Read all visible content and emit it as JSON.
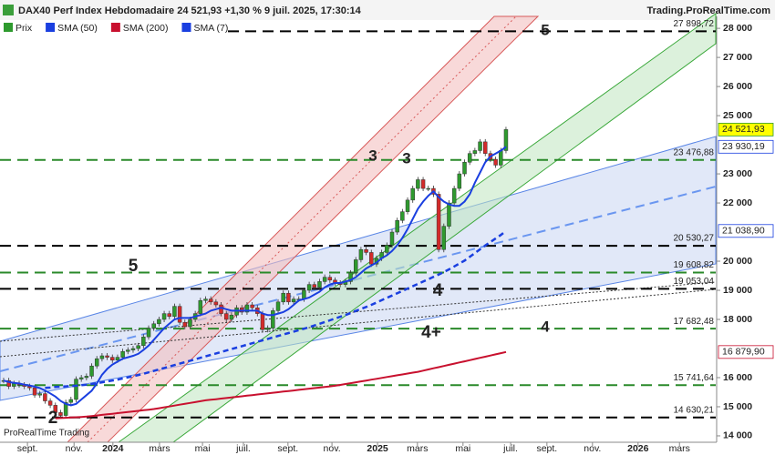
{
  "header": {
    "title": "DAX40 Perf Index Hebdomadaire 24 521,93 +1,30 % 9 juil. 2025, 17:30:14",
    "site": "Trading.ProRealTime.com"
  },
  "watermark": "ProRealTime Trading",
  "chart_data": {
    "type": "candlestick",
    "ylim": [
      13780,
      28410
    ],
    "xlim": [
      -0.7,
      137.5
    ],
    "yticks": [
      {
        "value": 28000,
        "label": "28 000"
      },
      {
        "value": 27000,
        "label": "27 000"
      },
      {
        "value": 26000,
        "label": "26 000"
      },
      {
        "value": 25000,
        "label": "25 000"
      },
      {
        "value": 23000,
        "label": "23 000"
      },
      {
        "value": 22000,
        "label": "22 000"
      },
      {
        "value": 20000,
        "label": "20 000"
      },
      {
        "value": 19000,
        "label": "19 000"
      },
      {
        "value": 18000,
        "label": "18 000"
      },
      {
        "value": 16000,
        "label": "16 000"
      },
      {
        "value": 15000,
        "label": "15 000"
      },
      {
        "value": 14000,
        "label": "14 000"
      }
    ],
    "xticks": [
      {
        "value": 4.6,
        "label": "sept."
      },
      {
        "value": 13.6,
        "label": "nov."
      },
      {
        "value": 21.1,
        "label": "2024"
      },
      {
        "value": 30.1,
        "label": "mars"
      },
      {
        "value": 38.4,
        "label": "mai"
      },
      {
        "value": 46.3,
        "label": "juil."
      },
      {
        "value": 54.9,
        "label": "sept."
      },
      {
        "value": 63.4,
        "label": "nov."
      },
      {
        "value": 72.2,
        "label": "2025"
      },
      {
        "value": 79.9,
        "label": "mars"
      },
      {
        "value": 88.7,
        "label": "mai"
      },
      {
        "value": 97.9,
        "label": "juil."
      },
      {
        "value": 104.9,
        "label": "sept."
      },
      {
        "value": 113.7,
        "label": "nov."
      },
      {
        "value": 122.5,
        "label": "2026"
      },
      {
        "value": 130.5,
        "label": "mars"
      }
    ],
    "series": [
      {
        "name": "Prix",
        "kind": "candles",
        "up_color": "#2e9a2e",
        "down_color": "#d42a2a",
        "color": "#2e9a2e",
        "last_label": "24 521,93",
        "tag_color": "#ffff00",
        "values": [
          15900,
          15700,
          15800,
          15750,
          15700,
          15650,
          15400,
          15450,
          15200,
          15050,
          14800,
          14700,
          15150,
          15250,
          15950,
          16000,
          16050,
          16400,
          16650,
          16750,
          16700,
          16600,
          16700,
          16900,
          16950,
          17000,
          17100,
          17400,
          17700,
          17850,
          18000,
          18200,
          18100,
          18450,
          17900,
          17750,
          18000,
          18200,
          18650,
          18700,
          18600,
          18500,
          18200,
          18000,
          18150,
          18400,
          18250,
          18500,
          18400,
          18200,
          17650,
          17700,
          18300,
          18600,
          18900,
          18600,
          18700,
          18700,
          19000,
          19200,
          19100,
          19300,
          19450,
          19350,
          19250,
          19200,
          19300,
          19600,
          20050,
          20400,
          20300,
          19900,
          20100,
          20300,
          20550,
          21000,
          21400,
          21700,
          22100,
          22500,
          22800,
          22500,
          22500,
          22300,
          20400,
          21200,
          22000,
          22500,
          23000,
          23400,
          23700,
          23800,
          24100,
          23700,
          23500,
          23300,
          23800,
          24521.93
        ]
      },
      {
        "name": "SMA (50)",
        "kind": "line",
        "color": "#1a3fe0",
        "dash": true,
        "last_label": "21 038,90",
        "values": [
          null,
          null,
          null,
          null,
          null,
          null,
          null,
          null,
          15650,
          15660,
          15680,
          15690,
          15700,
          15710,
          15720,
          15740,
          15760,
          15780,
          15810,
          15840,
          15870,
          15900,
          15930,
          15970,
          16010,
          16050,
          16090,
          16130,
          16180,
          16230,
          16280,
          16330,
          16380,
          16430,
          16480,
          16530,
          16580,
          16630,
          16680,
          16730,
          16780,
          16830,
          16880,
          16930,
          16980,
          17030,
          17080,
          17130,
          17180,
          17230,
          17280,
          17330,
          17380,
          17430,
          17480,
          17530,
          17580,
          17630,
          17680,
          17730,
          17790,
          17850,
          17910,
          17970,
          18030,
          18090,
          18150,
          18220,
          18290,
          18360,
          18430,
          18500,
          18580,
          18660,
          18740,
          18820,
          18900,
          18980,
          19060,
          19140,
          19220,
          19300,
          19380,
          19460,
          19540,
          19630,
          19720,
          19820,
          19920,
          20020,
          20150,
          20280,
          20410,
          20540,
          20660,
          20780,
          20900,
          21038.9
        ]
      },
      {
        "name": "SMA (200)",
        "kind": "line",
        "color": "#c8102e",
        "dash": false,
        "last_label": "16 879,90",
        "values": [
          null,
          null,
          null,
          null,
          null,
          null,
          null,
          null,
          null,
          null,
          14600,
          14610,
          14620,
          14630,
          14640,
          14650,
          14660,
          14680,
          14700,
          14720,
          14740,
          14760,
          14780,
          14800,
          14820,
          14840,
          14860,
          14880,
          14900,
          14920,
          14950,
          14980,
          15010,
          15040,
          15070,
          15100,
          15130,
          15160,
          15190,
          15220,
          15240,
          15260,
          15280,
          15300,
          15320,
          15340,
          15360,
          15380,
          15400,
          15420,
          15440,
          15460,
          15480,
          15500,
          15520,
          15540,
          15560,
          15580,
          15600,
          15620,
          15640,
          15660,
          15680,
          15700,
          15720,
          15750,
          15780,
          15810,
          15840,
          15870,
          15900,
          15930,
          15960,
          15990,
          16020,
          16050,
          16080,
          16110,
          16140,
          16170,
          16200,
          16240,
          16280,
          16320,
          16360,
          16400,
          16440,
          16480,
          16520,
          16560,
          16600,
          16640,
          16680,
          16720,
          16760,
          16800,
          16840,
          16879.9
        ]
      },
      {
        "name": "SMA (7)",
        "kind": "line",
        "color": "#1a3fe0",
        "dash": false,
        "last_label": "23 930,19",
        "values": [
          15900,
          15850,
          15820,
          15800,
          15760,
          15730,
          15690,
          15640,
          15560,
          15460,
          15350,
          15200,
          15100,
          15050,
          15100,
          15250,
          15400,
          15550,
          15800,
          16100,
          16300,
          16450,
          16550,
          16650,
          16700,
          16750,
          16820,
          16950,
          17100,
          17300,
          17500,
          17700,
          17850,
          18000,
          18050,
          18050,
          18050,
          18100,
          18150,
          18200,
          18300,
          18350,
          18400,
          18350,
          18300,
          18300,
          18300,
          18300,
          18300,
          18300,
          18200,
          18150,
          18150,
          18200,
          18250,
          18350,
          18500,
          18650,
          18700,
          18750,
          18850,
          18950,
          19100,
          19200,
          19250,
          19250,
          19300,
          19350,
          19450,
          19600,
          19750,
          19850,
          19950,
          20100,
          20200,
          20350,
          20550,
          20800,
          21100,
          21450,
          21800,
          22050,
          22250,
          22400,
          22200,
          22050,
          21950,
          21900,
          21900,
          22050,
          22300,
          22700,
          23050,
          23400,
          23600,
          23700,
          23800,
          23930.19
        ]
      }
    ],
    "levels": [
      {
        "value": 27898.72,
        "label": "27 898,72",
        "color": "#000000"
      },
      {
        "value": 23476.88,
        "label": "23 476,88",
        "color": "#2a8a2a"
      },
      {
        "value": 20530.27,
        "label": "20 530,27",
        "color": "#000000"
      },
      {
        "value": 19608.82,
        "label": "19 608,82",
        "color": "#2a8a2a"
      },
      {
        "value": 19053.04,
        "label": "19 053,04",
        "color": "#000000"
      },
      {
        "value": 17682.48,
        "label": "17 682,48",
        "color": "#2a8a2a"
      },
      {
        "value": 15741.64,
        "label": "15 741,64",
        "color": "#2a8a2a"
      },
      {
        "value": 14630.21,
        "label": "14 630,21",
        "color": "#000000"
      }
    ],
    "annotations": [
      {
        "text": "5",
        "color": "#000000"
      },
      {
        "text": "3",
        "color": "#2a8a2a"
      },
      {
        "text": "3",
        "color": "#000000"
      },
      {
        "text": "5",
        "color": "#7a1fa2"
      },
      {
        "text": "4",
        "color": "#000000"
      },
      {
        "text": "4+",
        "color": "#000000"
      },
      {
        "text": "4",
        "color": "#2a8a2a"
      },
      {
        "text": "2",
        "color": "#000000"
      }
    ]
  }
}
